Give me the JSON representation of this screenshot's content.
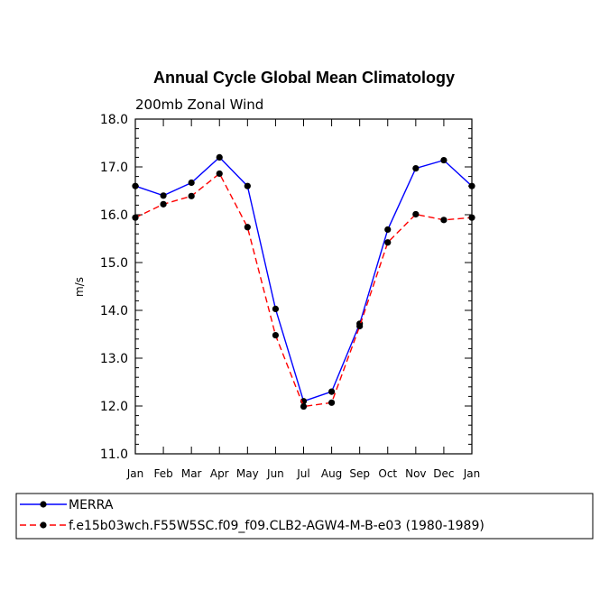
{
  "chart_data": {
    "type": "line",
    "title": "Annual Cycle Global Mean Climatology",
    "subtitle": "200mb Zonal Wind",
    "xlabel": "",
    "ylabel": "m/s",
    "categories": [
      "Jan",
      "Feb",
      "Mar",
      "Apr",
      "May",
      "Jun",
      "Jul",
      "Aug",
      "Sep",
      "Oct",
      "Nov",
      "Dec",
      "Jan"
    ],
    "ylim": [
      11.0,
      18.0
    ],
    "yticks": [
      "11.0",
      "12.0",
      "13.0",
      "14.0",
      "15.0",
      "16.0",
      "17.0",
      "18.0"
    ],
    "grid": false,
    "legend_position": "bottom",
    "series": [
      {
        "name": "MERRA",
        "color": "#0000ff",
        "style": "solid",
        "values": [
          16.6,
          16.4,
          16.67,
          17.2,
          16.6,
          14.03,
          12.1,
          12.3,
          13.72,
          15.69,
          16.97,
          17.14,
          16.6
        ]
      },
      {
        "name": "f.e15b03wch.F55W5SC.f09_f09.CLB2-AGW4-M-B-e03 (1980-1989)",
        "color": "#ff0000",
        "style": "dashed",
        "values": [
          15.94,
          16.22,
          16.39,
          16.86,
          15.74,
          13.48,
          11.99,
          12.07,
          13.67,
          15.42,
          16.01,
          15.89,
          15.94
        ]
      }
    ]
  }
}
